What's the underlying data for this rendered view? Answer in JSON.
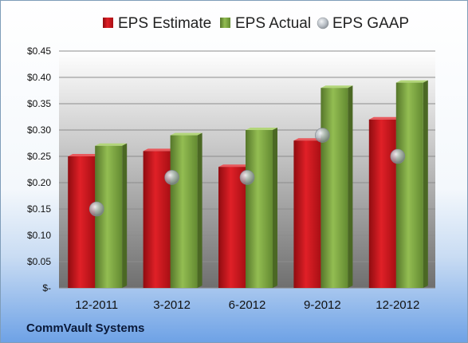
{
  "company": "CommVault Systems",
  "chart_data": {
    "type": "bar",
    "categories": [
      "12-2011",
      "3-2012",
      "6-2012",
      "9-2012",
      "12-2012"
    ],
    "series": [
      {
        "name": "EPS Estimate",
        "kind": "bar",
        "color": "#c4161c",
        "values": [
          0.25,
          0.26,
          0.23,
          0.28,
          0.32
        ]
      },
      {
        "name": "EPS Actual",
        "kind": "bar",
        "color": "#7aa23f",
        "values": [
          0.27,
          0.29,
          0.3,
          0.38,
          0.39
        ]
      },
      {
        "name": "EPS GAAP",
        "kind": "marker",
        "color": "#a7aeb6",
        "values": [
          0.15,
          0.21,
          0.21,
          0.29,
          0.25
        ]
      }
    ],
    "y_ticks": [
      "$-",
      "$0.05",
      "$0.10",
      "$0.15",
      "$0.20",
      "$0.25",
      "$0.30",
      "$0.35",
      "$0.40",
      "$0.45"
    ],
    "ylim": [
      0,
      0.45
    ],
    "grid": true,
    "legend_position": "top"
  }
}
